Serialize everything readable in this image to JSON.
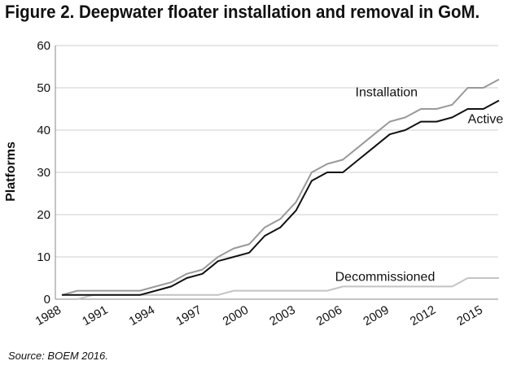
{
  "title": "Figure 2. Deepwater floater installation and removal in GoM.",
  "source": "Source: BOEM 2016.",
  "chart_data": {
    "type": "line",
    "title": "Figure 2. Deepwater floater installation and removal in GoM.",
    "xlabel": "",
    "ylabel": "Platforms",
    "xlim": [
      1988,
      2016
    ],
    "ylim": [
      0,
      60
    ],
    "yticks": [
      0,
      10,
      20,
      30,
      40,
      50,
      60
    ],
    "xticks": [
      "1988",
      "1991",
      "1994",
      "1997",
      "2000",
      "2003",
      "2006",
      "2009",
      "2012",
      "2015"
    ],
    "grid": true,
    "x": [
      1988,
      1989,
      1990,
      1991,
      1992,
      1993,
      1994,
      1995,
      1996,
      1997,
      1998,
      1999,
      2000,
      2001,
      2002,
      2003,
      2004,
      2005,
      2006,
      2007,
      2008,
      2009,
      2010,
      2011,
      2012,
      2013,
      2014,
      2015,
      2016
    ],
    "series": [
      {
        "name": "Installation",
        "color": "#999999",
        "values": [
          1,
          2,
          2,
          2,
          2,
          2,
          3,
          4,
          6,
          7,
          10,
          12,
          13,
          17,
          19,
          23,
          30,
          32,
          33,
          36,
          39,
          42,
          43,
          45,
          45,
          46,
          50,
          50,
          52
        ]
      },
      {
        "name": "Active",
        "color": "#111111",
        "values": [
          1,
          1,
          1,
          1,
          1,
          1,
          2,
          3,
          5,
          6,
          9,
          10,
          11,
          15,
          17,
          21,
          28,
          30,
          30,
          33,
          36,
          39,
          40,
          42,
          42,
          43,
          45,
          45,
          47
        ]
      },
      {
        "name": "Decommissioned",
        "color": "#c4c4c4",
        "values": [
          0,
          0,
          1,
          1,
          1,
          1,
          1,
          1,
          1,
          1,
          1,
          2,
          2,
          2,
          2,
          2,
          2,
          2,
          3,
          3,
          3,
          3,
          3,
          3,
          3,
          3,
          5,
          5,
          5
        ]
      }
    ]
  }
}
